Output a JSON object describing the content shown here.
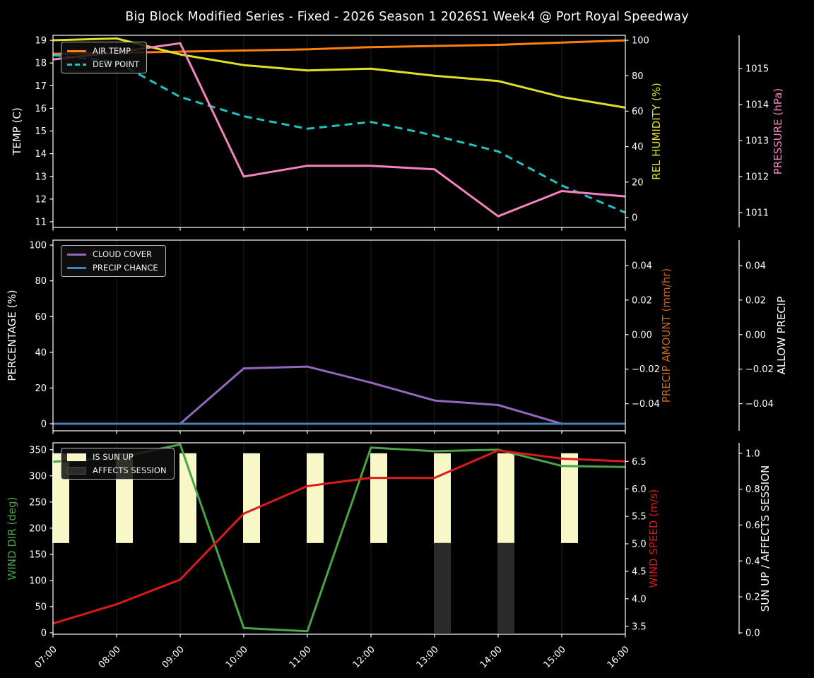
{
  "title": "Big Block Modified Series - Fixed - 2026 Season 1 2026S1 Week4 @ Port Royal Speedway",
  "colors": {
    "background": "#000000",
    "text": "#ffffff",
    "grid": "#1f1f1f",
    "spine": "#ffffff",
    "air_temp": "#ff7f0e",
    "dew_point": "#1fc3c3",
    "rel_humidity": "#e0e025",
    "pressure": "#f583bf",
    "cloud_cover": "#9467bd",
    "precip_chance": "#4682b4",
    "precip_amount": "#c9661e",
    "wind_dir": "#47a447",
    "wind_speed": "#dd1a1a",
    "is_sun_up": "#f7f7c8",
    "affects_session": "#2b2b2b"
  },
  "chart_data": {
    "type": "line",
    "title": "Big Block Modified Series - Fixed - 2026 Season 1 2026S1 Week4 @ Port Royal Speedway",
    "x": [
      "07:00",
      "08:00",
      "09:00",
      "10:00",
      "11:00",
      "12:00",
      "13:00",
      "14:00",
      "15:00",
      "16:00"
    ],
    "grid": "vertical-only",
    "panels": [
      {
        "id": "temperature-humidity-pressure",
        "legend": [
          {
            "label": "AIR TEMP",
            "type": "line",
            "color": "#ff7f0e"
          },
          {
            "label": "DEW POINT",
            "type": "dash",
            "color": "#1fc3c3"
          }
        ],
        "axes": {
          "left": {
            "label": "TEMP (C)",
            "color": "#ffffff",
            "range": [
              10.75,
              19.22
            ],
            "ticks": [
              11,
              12,
              13,
              14,
              15,
              16,
              17,
              18,
              19
            ],
            "tick_labels": [
              "11",
              "12",
              "13",
              "14",
              "15",
              "16",
              "17",
              "18",
              "19"
            ]
          },
          "right": {
            "label": "REL HUMIDITY (%)",
            "color": "#e0e025",
            "range": [
              -5.6,
              102.8
            ],
            "ticks": [
              0,
              20,
              40,
              60,
              80,
              100
            ],
            "tick_labels": [
              "0",
              "20",
              "40",
              "60",
              "80",
              "100"
            ]
          },
          "outer": {
            "label": "PRESSURE (hPa)",
            "color": "#f583bf",
            "range": [
              1010.59,
              1015.92
            ],
            "ticks": [
              1011,
              1012,
              1013,
              1014,
              1015
            ],
            "tick_labels": [
              "1011",
              "1012",
              "1013",
              "1014",
              "1015"
            ]
          }
        },
        "series": [
          {
            "name": "AIR TEMP",
            "axis": "left",
            "color": "#ff7f0e",
            "dash": false,
            "values": [
              18.4,
              18.45,
              18.5,
              18.55,
              18.6,
              18.7,
              18.75,
              18.8,
              18.9,
              19.0
            ]
          },
          {
            "name": "DEW POINT",
            "axis": "left",
            "color": "#1fc3c3",
            "dash": true,
            "values": [
              18.35,
              18.05,
              16.5,
              15.65,
              15.1,
              15.4,
              14.8,
              14.1,
              12.6,
              11.4
            ]
          },
          {
            "name": "REL HUMIDITY",
            "axis": "right",
            "color": "#e0e025",
            "dash": false,
            "values": [
              100,
              101,
              92,
              86,
              83,
              84,
              80,
              77,
              68,
              62
            ]
          },
          {
            "name": "PRESSURE",
            "axis": "outer",
            "color": "#f583bf",
            "dash": false,
            "values": [
              1015.25,
              1015.45,
              1015.7,
              1012.0,
              1012.3,
              1012.3,
              1012.2,
              1010.9,
              1011.6,
              1011.45
            ]
          }
        ],
        "bars": []
      },
      {
        "id": "cloud-precip",
        "legend": [
          {
            "label": "CLOUD COVER",
            "type": "line",
            "color": "#9467bd"
          },
          {
            "label": "PRECIP CHANCE",
            "type": "line",
            "color": "#4682b4"
          }
        ],
        "axes": {
          "left": {
            "label": "PERCENTAGE (%)",
            "color": "#ffffff",
            "range": [
              -3.95,
              102.8
            ],
            "ticks": [
              0,
              20,
              40,
              60,
              80,
              100
            ],
            "tick_labels": [
              "0",
              "20",
              "40",
              "60",
              "80",
              "100"
            ]
          },
          "right": {
            "label": "PRECIP AMOUNT (mm/hr)",
            "color": "#c9661e",
            "range": [
              -0.0557,
              0.0547
            ],
            "ticks": [
              0.04,
              0.02,
              0.0,
              -0.02,
              -0.04
            ],
            "tick_labels": [
              "0.04",
              "0.02",
              "0.00",
              "−0.02",
              "−0.04"
            ]
          },
          "outer": {
            "label": "ALLOW PRECIP",
            "color": "#ffffff",
            "range": [
              -0.0557,
              0.0547
            ],
            "ticks": [
              0.04,
              0.02,
              0.0,
              -0.02,
              -0.04
            ],
            "tick_labels": [
              "0.04",
              "0.02",
              "0.00",
              "−0.02",
              "−0.04"
            ]
          }
        },
        "series": [
          {
            "name": "CLOUD COVER",
            "axis": "left",
            "color": "#9467bd",
            "dash": false,
            "values": [
              0,
              0,
              0,
              31,
              32,
              23,
              13,
              10.5,
              0,
              0
            ]
          },
          {
            "name": "PRECIP CHANCE",
            "axis": "left",
            "color": "#4682b4",
            "dash": false,
            "values": [
              0,
              0,
              0,
              0,
              0,
              0,
              0,
              0,
              0,
              0
            ]
          }
        ],
        "bars": []
      },
      {
        "id": "wind-sun",
        "legend": [
          {
            "label": "IS SUN UP",
            "type": "patch",
            "color": "#f7f7c8"
          },
          {
            "label": "AFFECTS SESSION",
            "type": "patch",
            "color": "#2b2b2b"
          }
        ],
        "axes": {
          "left": {
            "label": "WIND DIR (deg)",
            "color": "#47a447",
            "range": [
              -2.7,
              363.1
            ],
            "ticks": [
              0,
              50,
              100,
              150,
              200,
              250,
              300,
              350
            ],
            "tick_labels": [
              "0",
              "50",
              "100",
              "150",
              "200",
              "250",
              "300",
              "350"
            ]
          },
          "right": {
            "label": "WIND SPEED (m/s)",
            "color": "#dd1a1a",
            "range": [
              3.355,
              6.838
            ],
            "ticks": [
              3.5,
              4.0,
              4.5,
              5.0,
              5.5,
              6.0,
              6.5
            ],
            "tick_labels": [
              "3.5",
              "4.0",
              "4.5",
              "5.0",
              "5.5",
              "6.0",
              "6.5"
            ]
          },
          "outer": {
            "label": "SUN UP / AFFECTS SESSION",
            "color": "#ffffff",
            "range": [
              -0.0079,
              1.058
            ],
            "ticks": [
              0.0,
              0.2,
              0.4,
              0.6,
              0.8,
              1.0
            ],
            "tick_labels": [
              "0.0",
              "0.2",
              "0.4",
              "0.6",
              "0.8",
              "1.0"
            ]
          }
        },
        "series": [
          {
            "name": "WIND DIR",
            "axis": "left",
            "color": "#47a447",
            "dash": false,
            "values": [
              327,
              334,
              360,
              9,
              3,
              354,
              347,
              350,
              319,
              317
            ]
          },
          {
            "name": "WIND SPEED",
            "axis": "right",
            "color": "#dd1a1a",
            "dash": false,
            "values": [
              3.55,
              3.9,
              4.35,
              5.55,
              6.05,
              6.2,
              6.2,
              6.7,
              6.55,
              6.5
            ]
          }
        ],
        "bars": [
          {
            "name": "IS SUN UP",
            "axis": "outer",
            "color": "#f7f7c8",
            "from": 0.5,
            "to": 1.0,
            "mask": [
              1,
              1,
              1,
              1,
              1,
              1,
              1,
              1,
              1,
              0
            ]
          },
          {
            "name": "AFFECTS SESSION",
            "axis": "outer",
            "color": "#2b2b2b",
            "from": 0.0,
            "to": 0.5,
            "mask": [
              0,
              0,
              0,
              0,
              0,
              0,
              1,
              1,
              0,
              0
            ]
          }
        ]
      }
    ]
  }
}
